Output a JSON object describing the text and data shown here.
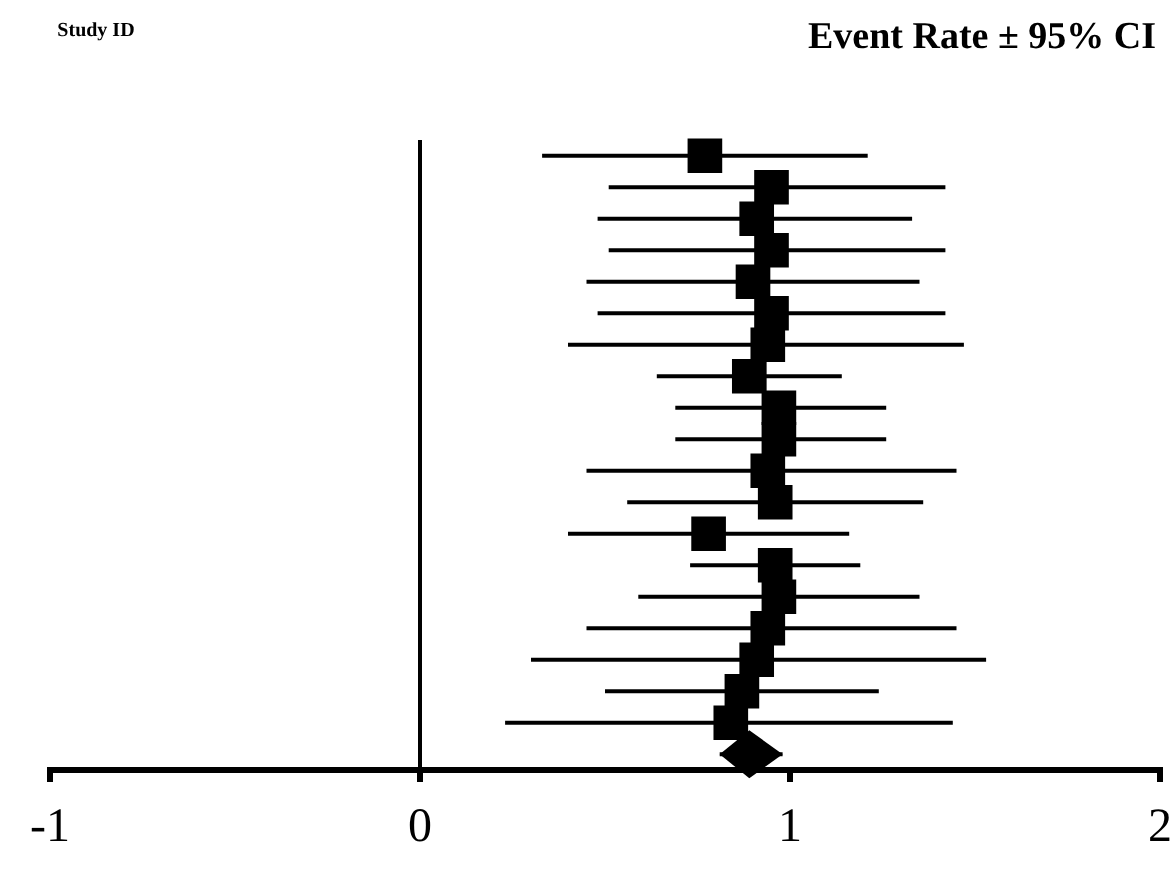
{
  "chart_data": {
    "type": "scatter",
    "orientation": "horizontal",
    "annotations": [
      "Study ID",
      "Event Rate ± 95% CI"
    ],
    "categories": [
      null,
      null,
      null,
      null,
      null,
      null,
      null,
      null,
      null,
      null,
      null,
      null,
      null,
      null,
      null,
      null,
      null,
      null,
      null,
      null
    ],
    "xlim": [
      -1,
      2
    ],
    "xticks": [
      -1,
      0,
      1,
      2
    ],
    "tick_labels": "x",
    "grid": false,
    "ref_lines": [
      {
        "axis": "x",
        "value": 0,
        "color": "#000000"
      }
    ],
    "series": [
      {
        "color": "#000000",
        "marker": "square",
        "values": [
          0.77,
          0.95,
          0.91,
          0.95,
          0.9,
          0.95,
          0.94,
          0.89,
          0.97,
          0.97,
          0.94,
          0.96,
          0.78,
          0.96,
          0.97,
          0.94,
          0.91,
          0.87,
          0.84,
          null
        ],
        "errors": [
          [
            0.33,
            1.21
          ],
          [
            0.51,
            1.42
          ],
          [
            0.48,
            1.33
          ],
          [
            0.51,
            1.42
          ],
          [
            0.45,
            1.35
          ],
          [
            0.48,
            1.42
          ],
          [
            0.4,
            1.47
          ],
          [
            0.64,
            1.14
          ],
          [
            0.69,
            1.26
          ],
          [
            0.69,
            1.26
          ],
          [
            0.45,
            1.45
          ],
          [
            0.56,
            1.36
          ],
          [
            0.4,
            1.16
          ],
          [
            0.73,
            1.19
          ],
          [
            0.59,
            1.35
          ],
          [
            0.45,
            1.45
          ],
          [
            0.3,
            1.53
          ],
          [
            0.5,
            1.24
          ],
          [
            0.23,
            1.44
          ],
          null
        ]
      },
      {
        "color": "#000000",
        "marker": "diamond",
        "values": [
          null,
          null,
          null,
          null,
          null,
          null,
          null,
          null,
          null,
          null,
          null,
          null,
          null,
          null,
          null,
          null,
          null,
          null,
          null,
          0.89
        ],
        "errors": [
          null,
          null,
          null,
          null,
          null,
          null,
          null,
          null,
          null,
          null,
          null,
          null,
          null,
          null,
          null,
          null,
          null,
          null,
          null,
          [
            0.81,
            0.98
          ]
        ]
      }
    ]
  }
}
